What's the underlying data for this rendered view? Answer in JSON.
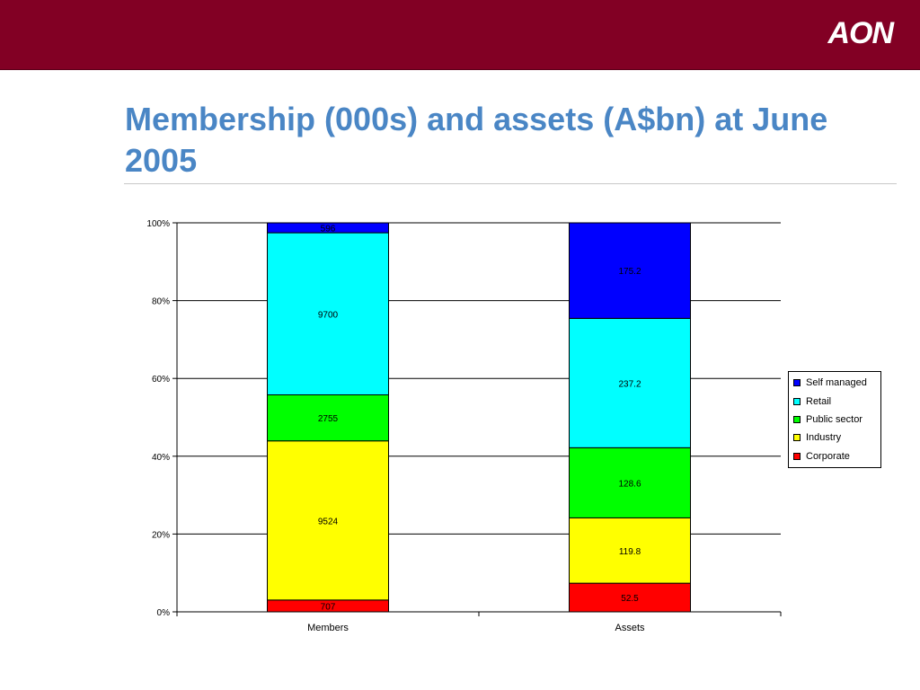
{
  "header": {
    "brand": "AON"
  },
  "title": "Membership (000s) and assets (A$bn) at June 2005",
  "chart_data": {
    "type": "bar",
    "stacked": "percent",
    "categories": [
      "Members",
      "Assets"
    ],
    "series": [
      {
        "name": "Corporate",
        "color": "#ff0000",
        "values": [
          707,
          52.5
        ]
      },
      {
        "name": "Industry",
        "color": "#ffff00",
        "values": [
          9524,
          119.8
        ]
      },
      {
        "name": "Public sector",
        "color": "#00ff00",
        "values": [
          2755,
          128.6
        ]
      },
      {
        "name": "Retail",
        "color": "#00ffff",
        "values": [
          9700,
          237.2
        ]
      },
      {
        "name": "Self managed",
        "color": "#0000ff",
        "values": [
          596,
          175.2
        ]
      }
    ],
    "y_ticks": [
      "0%",
      "20%",
      "40%",
      "60%",
      "80%",
      "100%"
    ],
    "ylim": [
      0,
      100
    ],
    "grid": true,
    "legend_position": "right",
    "legend_order": [
      "Self managed",
      "Retail",
      "Public sector",
      "Industry",
      "Corporate"
    ]
  }
}
